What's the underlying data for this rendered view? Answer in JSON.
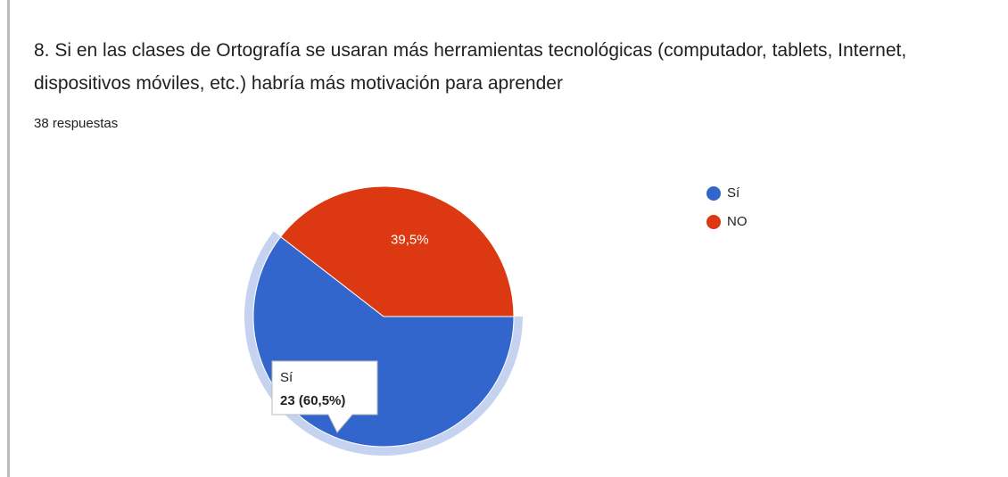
{
  "chart_data": {
    "type": "pie",
    "title": "8. Si en las clases de Ortografía se usaran más herramientas tecnológicas (computador, tablets, Internet, dispositivos móviles, etc.) habría más motivación para aprender",
    "subtitle": "38 respuestas",
    "categories": [
      "Sí",
      "NO"
    ],
    "values": [
      60.5,
      39.5
    ],
    "value_labels": [
      null,
      "39,5%"
    ],
    "colors": [
      "#3366cc",
      "#dc3912"
    ],
    "legend": "right",
    "tooltip": {
      "text": "23 (60,5%)"
    }
  }
}
